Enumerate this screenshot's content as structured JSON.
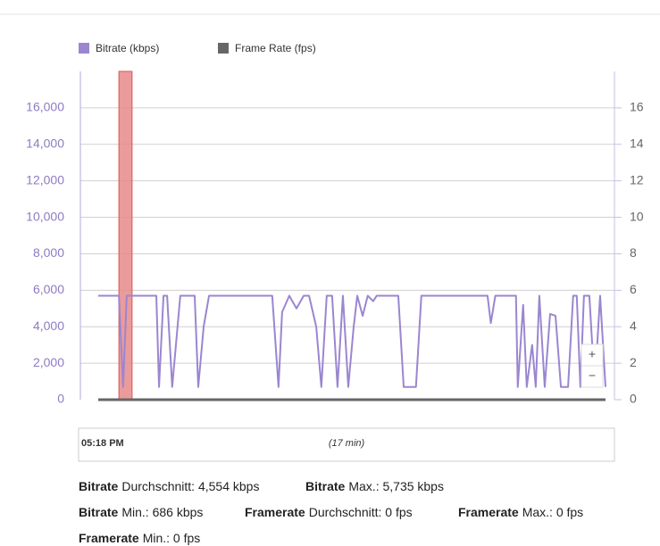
{
  "chart_data": {
    "type": "line",
    "series": [
      {
        "name": "Bitrate (kbps)",
        "color": "#9b86d0",
        "values": [
          5700,
          5700,
          700,
          5700,
          5700,
          700,
          5700,
          5700,
          700,
          5700,
          5700,
          700,
          4000,
          5700,
          5700,
          700,
          4800,
          5700,
          5000,
          5700,
          5700,
          4000,
          700,
          5700,
          5700,
          700,
          5700,
          700,
          4000,
          5700,
          4600,
          5700,
          5400,
          5700,
          5700,
          700,
          700,
          5700,
          5700,
          4200,
          5700,
          5700,
          700,
          5200,
          700,
          3000,
          700,
          5700,
          700,
          4700,
          4600,
          700,
          700,
          5700,
          5700,
          700,
          5700,
          5700,
          700,
          5700,
          700
        ]
      },
      {
        "name": "Frame Rate (fps)",
        "color": "#666666",
        "axis": "y2",
        "x": [
          0,
          16.94
        ],
        "values": [
          0,
          0
        ]
      }
    ],
    "x": [
      0,
      0.69,
      0.83,
      0.95,
      1.94,
      2.03,
      2.18,
      2.3,
      2.47,
      2.74,
      3.22,
      3.34,
      3.52,
      3.7,
      5.81,
      6.02,
      6.14,
      6.38,
      6.62,
      6.86,
      7.04,
      7.28,
      7.45,
      7.63,
      7.81,
      7.99,
      8.17,
      8.35,
      8.53,
      8.65,
      8.83,
      9.0,
      9.18,
      9.3,
      10.02,
      10.2,
      10.61,
      10.79,
      13.0,
      13.11,
      13.26,
      13.95,
      14.01,
      14.19,
      14.31,
      14.49,
      14.61,
      14.73,
      14.91,
      15.09,
      15.27,
      15.45,
      15.69,
      15.86,
      15.98,
      16.1,
      16.22,
      16.4,
      16.58,
      16.76,
      16.94
    ],
    "xlim": [
      0,
      17
    ],
    "ylim": [
      0,
      18000
    ],
    "yticks": [
      0,
      {
        "value": 2000,
        "label": "2,000"
      },
      {
        "value": 4000,
        "label": "4,000"
      },
      {
        "value": 6000,
        "label": "6,000"
      },
      {
        "value": 8000,
        "label": "8,000"
      },
      {
        "value": 10000,
        "label": "10,000"
      },
      {
        "value": 12000,
        "label": "12,000"
      },
      {
        "value": 14000,
        "label": "14,000"
      },
      {
        "value": 16000,
        "label": "16,000"
      }
    ],
    "y2lim": [
      0,
      18
    ],
    "y2ticks": [
      0,
      2,
      4,
      6,
      8,
      10,
      12,
      14,
      16
    ],
    "grid": true,
    "highlight": {
      "range": [
        0.69,
        1.13
      ],
      "color": "#e88a8a"
    },
    "navigator": {
      "start": "05:18 PM",
      "span": "(17 min)"
    },
    "zoom": [
      "+",
      "−"
    ],
    "stats": [
      {
        "label": "Bitrate",
        "text": "Durchschnitt: 4,554 kbps"
      },
      {
        "label": "Bitrate",
        "text": "Max.: 5,735 kbps"
      },
      {
        "label": "Bitrate",
        "text": "Min.: 686 kbps"
      },
      {
        "label": "Framerate",
        "text": "Durchschnitt: 0 fps"
      },
      {
        "label": "Framerate",
        "text": "Max.: 0 fps"
      },
      {
        "label": "Framerate",
        "text": "Min.: 0 fps"
      }
    ]
  }
}
